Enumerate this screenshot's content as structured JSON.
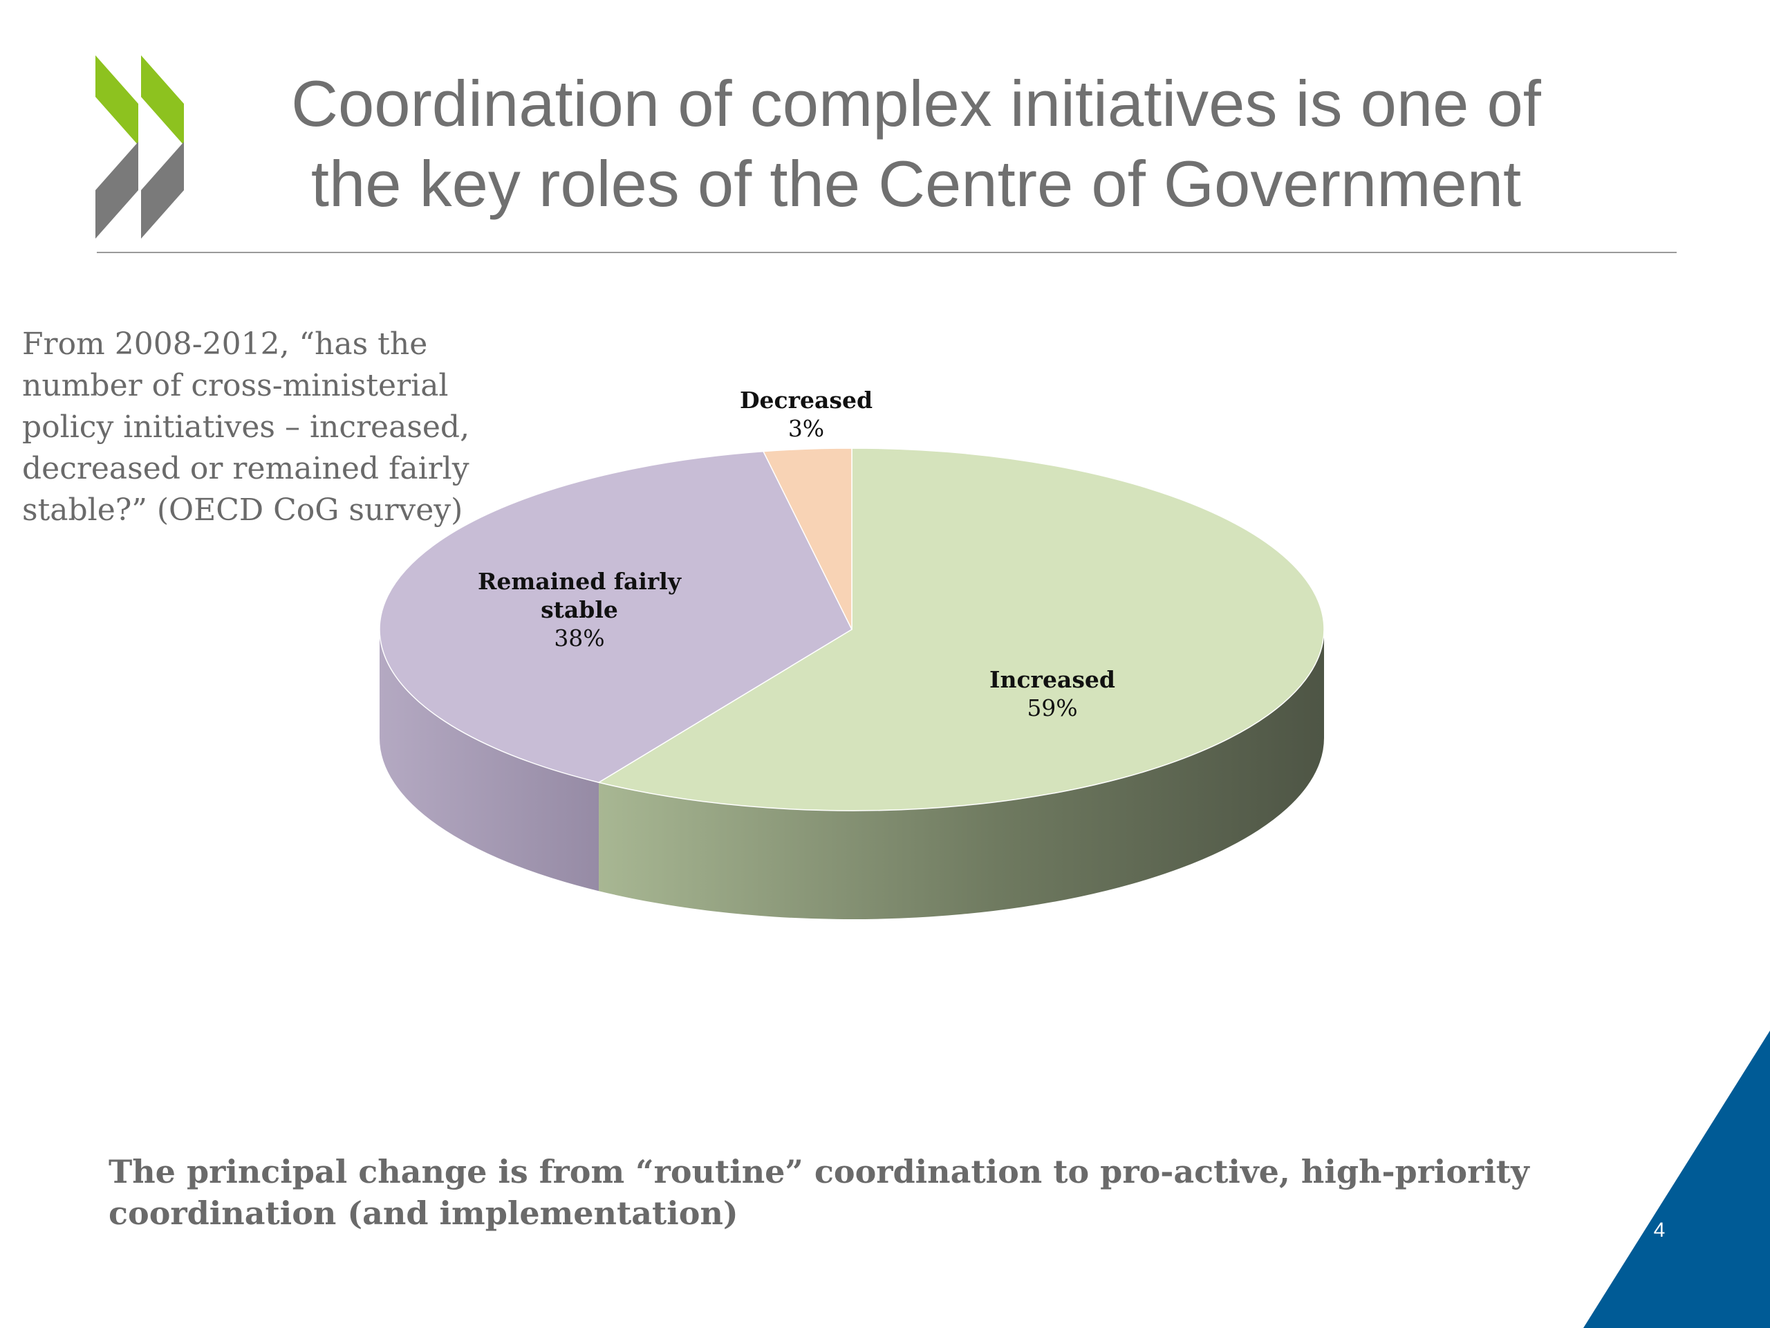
{
  "slide": {
    "title_lines": [
      "Coordination of complex initiatives is one of",
      "the key roles of the Centre of Government"
    ],
    "question_lines": [
      "From 2008-2012, “has the",
      "number of cross-ministerial",
      "policy initiatives – increased,",
      "decreased or remained fairly",
      "stable?” (OECD CoG survey)"
    ],
    "footer_lines": [
      "The principal change is from “routine” coordination to pro-active, high-priority",
      "coordination (and implementation)"
    ],
    "page_number": "4",
    "logo_icon": "oecd-chevrons-logo",
    "colors": {
      "title_text": "#707070",
      "body_text": "#6a6a6a",
      "logo_green": "#8dc21f",
      "logo_grey": "#7a7a7a",
      "corner_blue": "#005b96"
    }
  },
  "chart_data": {
    "type": "pie",
    "style": "3d",
    "title": "",
    "slices": [
      {
        "label": "Increased",
        "value": 59,
        "display": "59%",
        "color": "#d5e3bc"
      },
      {
        "label": "Remained fairly stable",
        "label_lines": [
          "Remained fairly",
          "stable"
        ],
        "value": 38,
        "display": "38%",
        "color": "#c8bdd6"
      },
      {
        "label": "Decreased",
        "value": 3,
        "display": "3%",
        "color": "#f8d3b5"
      }
    ],
    "start_angle": "12 o'clock",
    "direction": "clockwise",
    "legend": "none",
    "data_labels": "category name and percentage"
  }
}
